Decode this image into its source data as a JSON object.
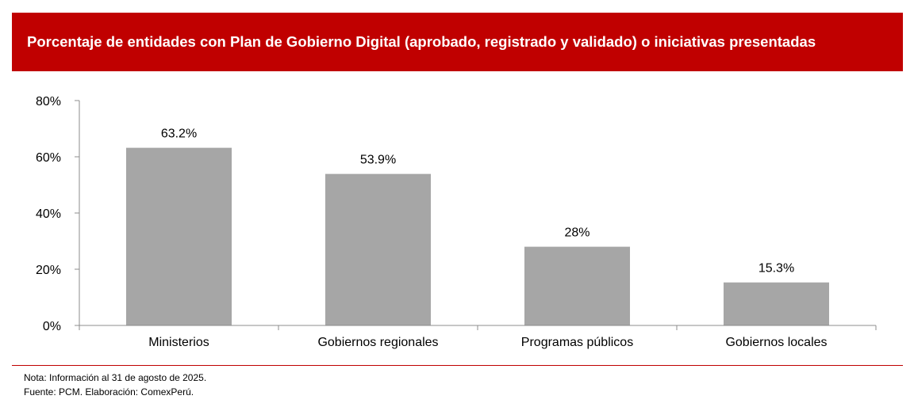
{
  "title": "Porcentaje de entidades con Plan de Gobierno Digital (aprobado, registrado y validado) o iniciativas presentadas",
  "colors": {
    "banner": "#c00000",
    "bar": "#a6a6a6",
    "axis": "#8c8c8c",
    "rule": "#c00000"
  },
  "chart_data": {
    "type": "bar",
    "title": "Porcentaje de entidades con Plan de Gobierno Digital (aprobado, registrado y validado) o iniciativas presentadas",
    "categories": [
      "Ministerios",
      "Gobiernos regionales",
      "Programas públicos",
      "Gobiernos locales"
    ],
    "values": [
      63.2,
      53.9,
      28,
      15.3
    ],
    "data_labels": [
      "63.2%",
      "53.9%",
      "28%",
      "15.3%"
    ],
    "ylim": [
      0,
      80
    ],
    "yticks": [
      0,
      20,
      40,
      60,
      80
    ],
    "ytick_labels": [
      "0%",
      "20%",
      "40%",
      "60%",
      "80%"
    ],
    "xlabel": "",
    "ylabel": "",
    "grid": false,
    "legend": "none"
  },
  "footer": {
    "note": "Nota: Información al 31 de agosto de 2025.",
    "source": "Fuente: PCM. Elaboración: ComexPerú."
  }
}
